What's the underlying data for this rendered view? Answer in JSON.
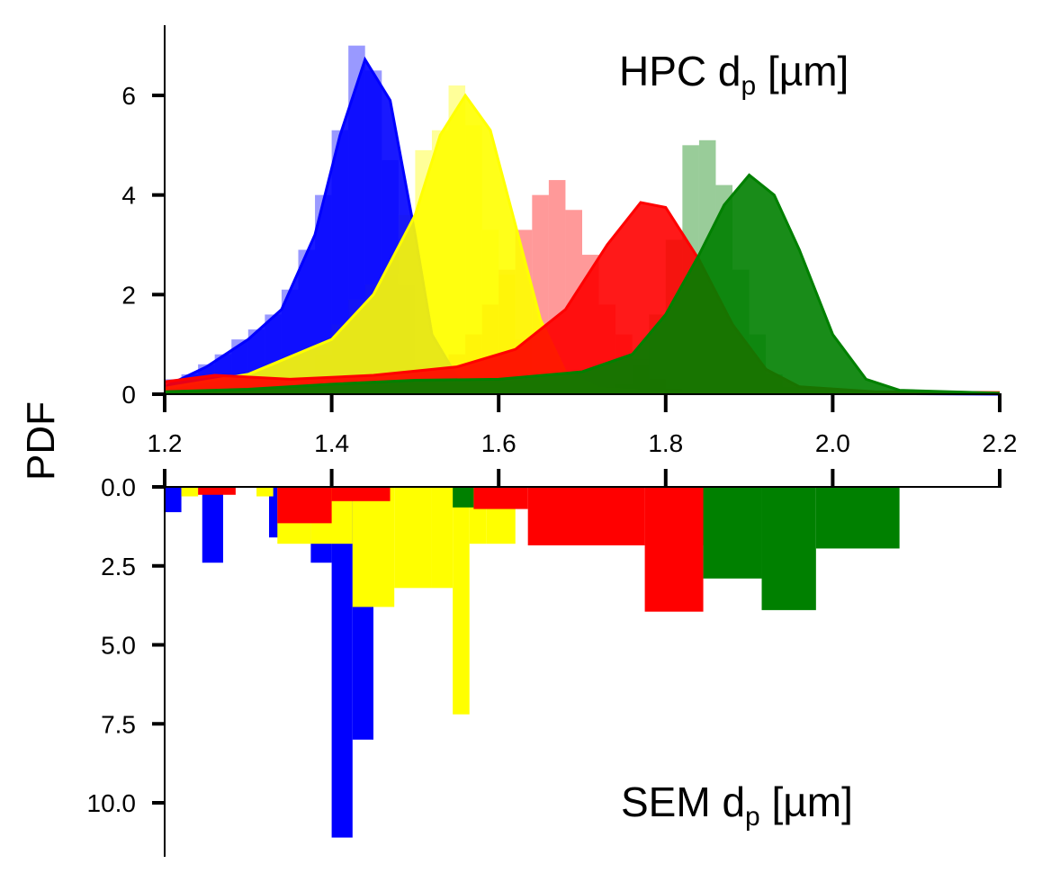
{
  "chart_data": {
    "type": "mirrored-histogram-with-density",
    "ylabel": "PDF",
    "colors": {
      "blue": "#0000ff",
      "yellow": "#ffff00",
      "red": "#ff0000",
      "green": "#008000"
    },
    "top": {
      "title": {
        "text": "HPC d",
        "sub": "p",
        "unit": " [µm]"
      },
      "xlim": [
        1.2,
        2.2
      ],
      "ylim": [
        0,
        7.4
      ],
      "x_ticks": [
        "1.2",
        "1.4",
        "1.6",
        "1.8",
        "2.0",
        "2.2"
      ],
      "y_ticks": [
        "0",
        "2",
        "4",
        "6"
      ],
      "bin_width": 0.02,
      "series": [
        {
          "name": "",
          "color": "#0000ff",
          "bin_start": 1.2,
          "hist": [
            0.3,
            0.4,
            0.6,
            0.8,
            1.1,
            1.3,
            1.6,
            2.1,
            2.9,
            4.0,
            5.3,
            7.0,
            6.5,
            4.7,
            2.2,
            0.6,
            0.1
          ],
          "density": [
            [
              1.2,
              0.15
            ],
            [
              1.25,
              0.55
            ],
            [
              1.3,
              1.1
            ],
            [
              1.34,
              1.7
            ],
            [
              1.38,
              3.2
            ],
            [
              1.41,
              5.2
            ],
            [
              1.44,
              6.72
            ],
            [
              1.47,
              5.9
            ],
            [
              1.5,
              3.2
            ],
            [
              1.52,
              1.2
            ],
            [
              1.55,
              0.35
            ],
            [
              1.6,
              0.1
            ],
            [
              1.7,
              0.04
            ],
            [
              2.2,
              0.0
            ]
          ]
        },
        {
          "name": "",
          "color": "#ffff00",
          "bin_start": 1.2,
          "hist": [
            0.0,
            0.0,
            0.0,
            0.0,
            0.0,
            0.0,
            0.0,
            0.2,
            0.3,
            0.8,
            1.4,
            1.9,
            2.2,
            2.4,
            3.6,
            4.9,
            5.3,
            6.2,
            5.4,
            3.3,
            2.4,
            1.1,
            0.4
          ],
          "density": [
            [
              1.2,
              0.12
            ],
            [
              1.3,
              0.4
            ],
            [
              1.4,
              1.1
            ],
            [
              1.45,
              2.0
            ],
            [
              1.5,
              3.6
            ],
            [
              1.53,
              5.2
            ],
            [
              1.56,
              6.0
            ],
            [
              1.59,
              5.3
            ],
            [
              1.62,
              3.4
            ],
            [
              1.65,
              1.5
            ],
            [
              1.68,
              0.45
            ],
            [
              1.72,
              0.12
            ],
            [
              1.8,
              0.04
            ],
            [
              2.2,
              0.03
            ]
          ]
        },
        {
          "name": "",
          "color": "#ff0000",
          "bin_start": 1.2,
          "hist": [
            0.15,
            0.3,
            0.35,
            0.35,
            0.3,
            0.3,
            0.35,
            0.3,
            0.3,
            0.35,
            0.35,
            0.35,
            0.4,
            0.4,
            0.4,
            0.5,
            0.6,
            0.8,
            1.2,
            1.8,
            2.5,
            3.3,
            4.0,
            4.3,
            3.7,
            2.8,
            1.8,
            1.2,
            0.7,
            0.3,
            0.1
          ],
          "density": [
            [
              1.2,
              0.25
            ],
            [
              1.26,
              0.38
            ],
            [
              1.35,
              0.3
            ],
            [
              1.45,
              0.38
            ],
            [
              1.55,
              0.55
            ],
            [
              1.62,
              0.9
            ],
            [
              1.68,
              1.7
            ],
            [
              1.73,
              3.0
            ],
            [
              1.77,
              3.85
            ],
            [
              1.8,
              3.75
            ],
            [
              1.84,
              2.7
            ],
            [
              1.88,
              1.4
            ],
            [
              1.92,
              0.5
            ],
            [
              1.96,
              0.15
            ],
            [
              2.05,
              0.05
            ],
            [
              2.2,
              0.03
            ]
          ]
        },
        {
          "name": "",
          "color": "#008000",
          "bin_start": 1.2,
          "hist": [
            0.05,
            0.05,
            0.05,
            0.05,
            0.05,
            0.05,
            0.05,
            0.05,
            0.05,
            0.05,
            0.05,
            0.05,
            0.5,
            0.1,
            0.1,
            0.1,
            0.1,
            0.1,
            0.1,
            0.1,
            0.1,
            0.1,
            0.1,
            0.1,
            0.1,
            0.1,
            0.1,
            0.2,
            0.6,
            1.6,
            3.1,
            5.0,
            5.1,
            4.2,
            2.5,
            1.2,
            0.4,
            0.15
          ],
          "density": [
            [
              1.2,
              0.05
            ],
            [
              1.3,
              0.1
            ],
            [
              1.4,
              0.2
            ],
            [
              1.5,
              0.28
            ],
            [
              1.6,
              0.3
            ],
            [
              1.7,
              0.45
            ],
            [
              1.76,
              0.8
            ],
            [
              1.8,
              1.6
            ],
            [
              1.84,
              2.8
            ],
            [
              1.87,
              3.8
            ],
            [
              1.9,
              4.4
            ],
            [
              1.93,
              4.0
            ],
            [
              1.96,
              2.9
            ],
            [
              2.0,
              1.2
            ],
            [
              2.04,
              0.3
            ],
            [
              2.08,
              0.08
            ],
            [
              2.2,
              0.02
            ]
          ]
        }
      ]
    },
    "bottom": {
      "title": {
        "text": "SEM d",
        "sub": "p",
        "unit": " [µm]"
      },
      "xlim": [
        1.2,
        2.2
      ],
      "ylim": [
        0,
        11.5
      ],
      "y_ticks": [
        {
          "v": 0.0,
          "label": "0.0"
        },
        {
          "v": 2.5,
          "label": "2.5"
        },
        {
          "v": 5.0,
          "label": "5.0"
        },
        {
          "v": 7.5,
          "label": "7.5"
        },
        {
          "v": 10.0,
          "label": "10.0"
        }
      ],
      "series": [
        {
          "name": "",
          "color": "#0000ff",
          "bins": [
            [
              1.2,
              1.22,
              0.8
            ],
            [
              1.245,
              1.27,
              2.4
            ],
            [
              1.325,
              1.365,
              1.6
            ],
            [
              1.375,
              1.4,
              2.4
            ],
            [
              1.4,
              1.425,
              11.1
            ],
            [
              1.425,
              1.45,
              8.0
            ]
          ]
        },
        {
          "name": "",
          "color": "#ffff00",
          "bins": [
            [
              1.22,
              1.24,
              0.3
            ],
            [
              1.31,
              1.33,
              0.3
            ],
            [
              1.335,
              1.375,
              1.8
            ],
            [
              1.375,
              1.425,
              1.8
            ],
            [
              1.425,
              1.475,
              3.8
            ],
            [
              1.475,
              1.52,
              3.2
            ],
            [
              1.52,
              1.545,
              3.2
            ],
            [
              1.545,
              1.565,
              7.2
            ],
            [
              1.565,
              1.585,
              1.8
            ],
            [
              1.585,
              1.62,
              1.8
            ]
          ]
        },
        {
          "name": "",
          "color": "#ff0000",
          "bins": [
            [
              1.24,
              1.285,
              0.25
            ],
            [
              1.335,
              1.4,
              1.15
            ],
            [
              1.4,
              1.47,
              0.45
            ],
            [
              1.57,
              1.635,
              0.7
            ],
            [
              1.635,
              1.775,
              1.85
            ],
            [
              1.775,
              1.845,
              3.95
            ],
            [
              1.845,
              1.915,
              1.85
            ]
          ]
        },
        {
          "name": "",
          "color": "#008000",
          "bins": [
            [
              1.545,
              1.57,
              0.65
            ],
            [
              1.845,
              1.915,
              2.9
            ],
            [
              1.915,
              1.98,
              3.9
            ],
            [
              1.98,
              2.08,
              1.95
            ]
          ]
        }
      ]
    }
  }
}
